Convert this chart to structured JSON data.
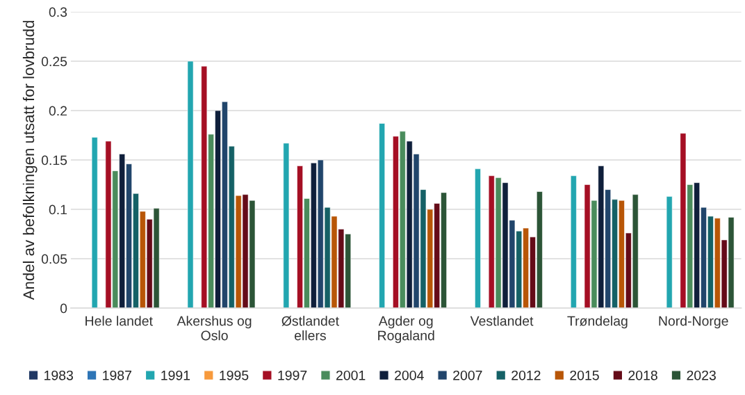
{
  "chart_data": {
    "type": "bar",
    "ylabel": "Andel av befolkningen utsatt for lovbrudd",
    "categories": [
      "Hele landet",
      "Akershus og\nOslo",
      "Østlandet\nellers",
      "Agder og\nRogaland",
      "Vestlandet",
      "Trøndelag",
      "Nord-Norge"
    ],
    "series": [
      {
        "name": "1983",
        "color": "#203864",
        "values": [
          null,
          null,
          null,
          null,
          null,
          null,
          null
        ]
      },
      {
        "name": "1987",
        "color": "#2e75b6",
        "values": [
          null,
          null,
          null,
          null,
          null,
          null,
          null
        ]
      },
      {
        "name": "1991",
        "color": "#22a6b0",
        "values": [
          0.173,
          0.25,
          0.167,
          0.187,
          0.141,
          0.134,
          0.113
        ]
      },
      {
        "name": "1995",
        "color": "#f79a3c",
        "values": [
          null,
          null,
          null,
          null,
          null,
          null,
          null
        ]
      },
      {
        "name": "1997",
        "color": "#a50f24",
        "values": [
          0.169,
          0.245,
          0.144,
          0.174,
          0.134,
          0.125,
          0.177
        ]
      },
      {
        "name": "2001",
        "color": "#4a8c5c",
        "values": [
          0.139,
          0.176,
          0.111,
          0.179,
          0.132,
          0.109,
          0.125
        ]
      },
      {
        "name": "2004",
        "color": "#0f1f3b",
        "values": [
          0.156,
          0.2,
          0.147,
          0.169,
          0.127,
          0.144,
          0.127
        ]
      },
      {
        "name": "2007",
        "color": "#21456b",
        "values": [
          0.146,
          0.209,
          0.15,
          0.156,
          0.089,
          0.12,
          0.102
        ]
      },
      {
        "name": "2012",
        "color": "#156166",
        "values": [
          0.116,
          0.164,
          0.102,
          0.12,
          0.078,
          0.11,
          0.093
        ]
      },
      {
        "name": "2015",
        "color": "#b85607",
        "values": [
          0.098,
          0.114,
          0.093,
          0.1,
          0.081,
          0.109,
          0.091
        ]
      },
      {
        "name": "2018",
        "color": "#650b18",
        "values": [
          0.09,
          0.115,
          0.08,
          0.106,
          0.072,
          0.076,
          0.069
        ]
      },
      {
        "name": "2023",
        "color": "#2c5537",
        "values": [
          0.101,
          0.109,
          0.075,
          0.117,
          0.118,
          0.115,
          0.092
        ]
      }
    ],
    "ylim": [
      0,
      0.3
    ],
    "yticks": [
      0,
      0.05,
      0.1,
      0.15,
      0.2,
      0.25,
      0.3
    ],
    "grid": "y",
    "legend": "bottom"
  }
}
